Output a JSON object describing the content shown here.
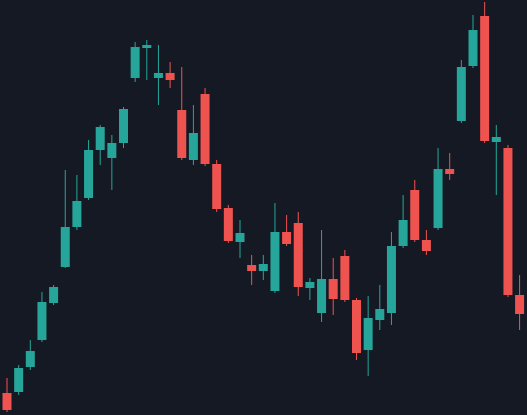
{
  "chart_data": {
    "type": "candlestick",
    "open": [
      22,
      23,
      48,
      75,
      112,
      148,
      188,
      217,
      265,
      257,
      272,
      337,
      367,
      337,
      342,
      305,
      255,
      321,
      251,
      207,
      173,
      150,
      144,
      124,
      183,
      192,
      127,
      102,
      136,
      159,
      115,
      65,
      95,
      102,
      169,
      225,
      175,
      187,
      246,
      294,
      349,
      399,
      273,
      267,
      120
    ],
    "high": [
      37,
      50,
      75,
      123,
      130,
      245,
      240,
      275,
      290,
      280,
      308,
      373,
      375,
      370,
      353,
      348,
      310,
      327,
      255,
      210,
      195,
      160,
      160,
      212,
      200,
      203,
      137,
      185,
      157,
      165,
      117,
      119,
      130,
      183,
      220,
      235,
      185,
      267,
      262,
      355,
      400,
      413,
      290,
      270,
      140
    ],
    "low": [
      3,
      20,
      45,
      73,
      110,
      147,
      185,
      215,
      250,
      225,
      267,
      333,
      335,
      310,
      327,
      255,
      250,
      249,
      203,
      172,
      157,
      130,
      135,
      122,
      169,
      119,
      115,
      93,
      100,
      113,
      55,
      39,
      85,
      90,
      167,
      173,
      160,
      185,
      235,
      292,
      347,
      272,
      220,
      118,
      85
    ],
    "close": [
      5,
      47,
      64,
      113,
      128,
      188,
      214,
      265,
      288,
      272,
      306,
      368,
      370,
      342,
      335,
      257,
      282,
      251,
      206,
      174,
      182,
      144,
      151,
      183,
      171,
      128,
      133,
      136,
      116,
      115,
      62,
      97,
      106,
      169,
      195,
      175,
      164,
      246,
      241,
      348,
      385,
      274,
      278,
      120,
      101
    ],
    "up_color": "#26a69a",
    "down_color": "#ef5350",
    "ylim": [
      0,
      415
    ]
  }
}
